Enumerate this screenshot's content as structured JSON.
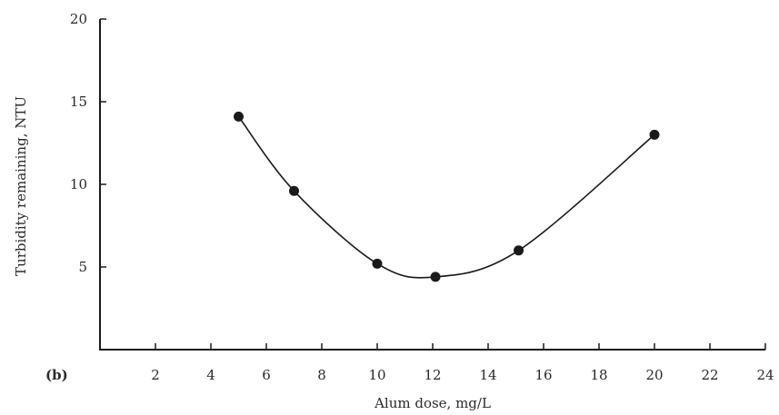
{
  "chart_data": {
    "type": "scatter",
    "panel_label": "(b)",
    "xlabel": "Alum dose, mg/L",
    "ylabel": "Turbidity remaining, NTU",
    "xlim": [
      0,
      24
    ],
    "ylim": [
      0,
      20
    ],
    "xticks": [
      2,
      4,
      6,
      8,
      10,
      12,
      14,
      16,
      18,
      20,
      22,
      24
    ],
    "yticks": [
      5,
      10,
      15,
      20
    ],
    "grid": false,
    "series": [
      {
        "points": [
          {
            "x": 5,
            "y": 14.1
          },
          {
            "x": 7,
            "y": 9.6
          },
          {
            "x": 10,
            "y": 5.2
          },
          {
            "x": 12.1,
            "y": 4.4
          },
          {
            "x": 15.1,
            "y": 6.0
          },
          {
            "x": 20,
            "y": 13.0
          }
        ],
        "fit_curve": true
      }
    ]
  }
}
